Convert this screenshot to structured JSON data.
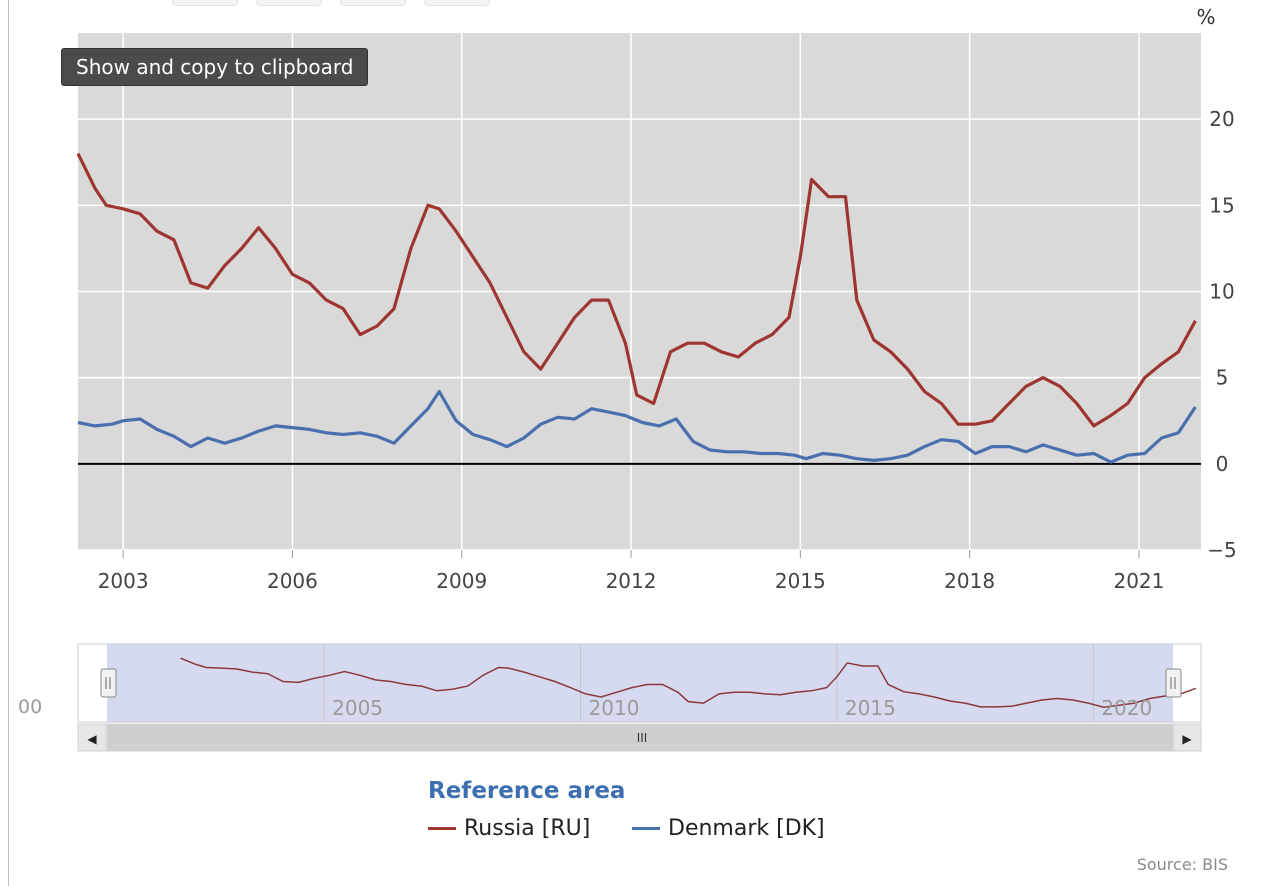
{
  "tooltip": {
    "text": "Show and copy to clipboard"
  },
  "axis": {
    "unit": "%"
  },
  "navigator": {
    "left_label": "00",
    "ticks": [
      "2005",
      "2010",
      "2015",
      "2020"
    ],
    "scroll_left": "◀",
    "scroll_right": "▶",
    "scroll_grip": "III"
  },
  "legend": {
    "title": "Reference area",
    "items": [
      {
        "label": "Russia [RU]",
        "color": "#9e3530"
      },
      {
        "label": "Denmark [DK]",
        "color": "#4a6fae"
      }
    ]
  },
  "source": "Source: BIS",
  "chart_data": {
    "type": "line",
    "title": "",
    "xlabel": "",
    "ylabel": "%",
    "xlim": [
      2002.2,
      2022.1
    ],
    "ylim": [
      -5,
      25
    ],
    "yticks": [
      -5,
      0,
      5,
      10,
      15,
      20
    ],
    "xticks": [
      "2003",
      "2006",
      "2009",
      "2012",
      "2015",
      "2018",
      "2021"
    ],
    "grid": true,
    "legend_position": "bottom",
    "colors": {
      "plot_background": "#d9d9d9",
      "zero_line": "#000000"
    },
    "series": [
      {
        "name": "Russia [RU]",
        "color": "#9e3530",
        "x": [
          2002.2,
          2002.5,
          2002.7,
          2003.0,
          2003.3,
          2003.6,
          2003.9,
          2004.2,
          2004.5,
          2004.8,
          2005.1,
          2005.4,
          2005.7,
          2006.0,
          2006.3,
          2006.6,
          2006.9,
          2007.2,
          2007.5,
          2007.8,
          2008.1,
          2008.4,
          2008.6,
          2008.9,
          2009.2,
          2009.5,
          2009.8,
          2010.1,
          2010.4,
          2010.7,
          2011.0,
          2011.3,
          2011.6,
          2011.9,
          2012.1,
          2012.4,
          2012.7,
          2013.0,
          2013.3,
          2013.6,
          2013.9,
          2014.2,
          2014.5,
          2014.8,
          2015.0,
          2015.2,
          2015.5,
          2015.8,
          2016.0,
          2016.3,
          2016.6,
          2016.9,
          2017.2,
          2017.5,
          2017.8,
          2018.1,
          2018.4,
          2018.7,
          2019.0,
          2019.3,
          2019.6,
          2019.9,
          2020.2,
          2020.5,
          2020.8,
          2021.1,
          2021.4,
          2021.7,
          2022.0
        ],
        "values": [
          18.0,
          16.0,
          15.0,
          14.8,
          14.5,
          13.5,
          13.0,
          10.5,
          10.2,
          11.5,
          12.5,
          13.7,
          12.5,
          11.0,
          10.5,
          9.5,
          9.0,
          7.5,
          8.0,
          9.0,
          12.5,
          15.0,
          14.8,
          13.5,
          12.0,
          10.5,
          8.5,
          6.5,
          5.5,
          7.0,
          8.5,
          9.5,
          9.5,
          7.0,
          4.0,
          3.5,
          6.5,
          7.0,
          7.0,
          6.5,
          6.2,
          7.0,
          7.5,
          8.5,
          12.0,
          16.5,
          15.5,
          15.5,
          9.5,
          7.2,
          6.5,
          5.5,
          4.2,
          3.5,
          2.3,
          2.3,
          2.5,
          3.5,
          4.5,
          5.0,
          4.5,
          3.5,
          2.2,
          2.8,
          3.5,
          5.0,
          5.8,
          6.5,
          8.3
        ]
      },
      {
        "name": "Denmark [DK]",
        "color": "#4a6fae",
        "x": [
          2002.2,
          2002.5,
          2002.8,
          2003.0,
          2003.3,
          2003.6,
          2003.9,
          2004.2,
          2004.5,
          2004.8,
          2005.1,
          2005.4,
          2005.7,
          2006.0,
          2006.3,
          2006.6,
          2006.9,
          2007.2,
          2007.5,
          2007.8,
          2008.1,
          2008.4,
          2008.6,
          2008.9,
          2009.2,
          2009.5,
          2009.8,
          2010.1,
          2010.4,
          2010.7,
          2011.0,
          2011.3,
          2011.6,
          2011.9,
          2012.2,
          2012.5,
          2012.8,
          2013.1,
          2013.4,
          2013.7,
          2014.0,
          2014.3,
          2014.6,
          2014.9,
          2015.1,
          2015.4,
          2015.7,
          2016.0,
          2016.3,
          2016.6,
          2016.9,
          2017.2,
          2017.5,
          2017.8,
          2018.1,
          2018.4,
          2018.7,
          2019.0,
          2019.3,
          2019.6,
          2019.9,
          2020.2,
          2020.5,
          2020.8,
          2021.1,
          2021.4,
          2021.7,
          2022.0
        ],
        "values": [
          2.4,
          2.2,
          2.3,
          2.5,
          2.6,
          2.0,
          1.6,
          1.0,
          1.5,
          1.2,
          1.5,
          1.9,
          2.2,
          2.1,
          2.0,
          1.8,
          1.7,
          1.8,
          1.6,
          1.2,
          2.2,
          3.2,
          4.2,
          2.5,
          1.7,
          1.4,
          1.0,
          1.5,
          2.3,
          2.7,
          2.6,
          3.2,
          3.0,
          2.8,
          2.4,
          2.2,
          2.6,
          1.3,
          0.8,
          0.7,
          0.7,
          0.6,
          0.6,
          0.5,
          0.3,
          0.6,
          0.5,
          0.3,
          0.2,
          0.3,
          0.5,
          1.0,
          1.4,
          1.3,
          0.6,
          1.0,
          1.0,
          0.7,
          1.1,
          0.8,
          0.5,
          0.6,
          0.1,
          0.5,
          0.6,
          1.5,
          1.8,
          3.3
        ]
      }
    ]
  }
}
